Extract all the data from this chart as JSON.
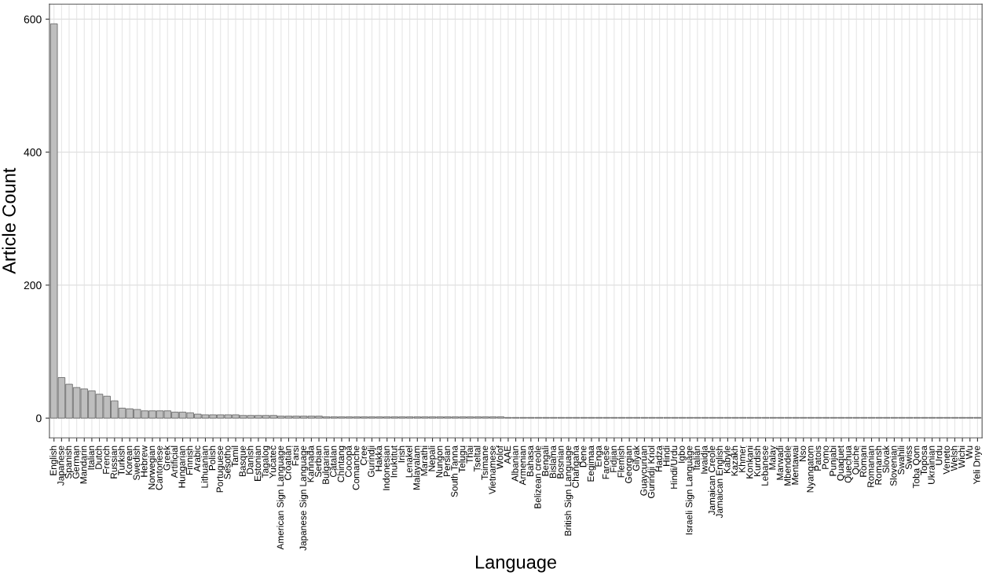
{
  "chart_data": {
    "type": "bar",
    "xlabel": "Language",
    "ylabel": "Article Count",
    "categories": [
      "English",
      "Japanese",
      "Spanish",
      "German",
      "Mandarin",
      "Italian",
      "Dutch",
      "French",
      "Russian",
      "Turkish",
      "Korean",
      "Swedish",
      "Hebrew",
      "Norwegian",
      "Cantonese",
      "Greek",
      "Artificial",
      "Hungarian",
      "Finnish",
      "Arabic",
      "Lithuanian",
      "Polish",
      "Portuguese",
      "Sesotho",
      "Tamil",
      "Basque",
      "Danish",
      "Estonian",
      "Tagalog",
      "Yucatec",
      "American Sign Language",
      "Croatian",
      "Farsi",
      "Japanese Sign Language",
      "Kannada",
      "Serbian",
      "Bulgarian",
      "Catalan",
      "Chintang",
      "Cocopa",
      "Comanche",
      "Cree",
      "Gurindji",
      "Hakka",
      "Indonesian",
      "Inuktitut",
      "Irish",
      "Lenakel",
      "Malayalam",
      "Marathi",
      "Nepali",
      "Nungon",
      "Persian",
      "South Tanna",
      "Telugu",
      "Thai",
      "Tseltal",
      "Tsimane",
      "Vietnamese",
      "Wolof",
      "AAE",
      "Albanian",
      "Armenian",
      "Bahasa",
      "Belizean creole",
      "Bengali",
      "Bislama",
      "Bosnian",
      "British Sign Language",
      "Changana",
      "Dene",
      "Eegimaa",
      "Enga",
      "Faroese",
      "Fidjian",
      "Flemish",
      "Georgian",
      "Gilyak",
      "Guaycuruan",
      "Gurindji Kriol",
      "Hadza",
      "Hindi",
      "Hindi/Urdu",
      "Igbo",
      "Israeli Sign Language",
      "Italian",
      "Iwaidja",
      "Jamaican Creole",
      "Jamaican English",
      "Kabyle",
      "Kazakh",
      "Khmer",
      "Konkani",
      "Kurdish",
      "Lebanese",
      "Malay",
      "Marwadi",
      "Mbendele",
      "Mentawai",
      "Nso",
      "Nyangatom",
      "Patois",
      "Pomo",
      "Punjabi",
      "Quaquet",
      "Quechua",
      "Quiche",
      "Romani",
      "Romanian",
      "Romansh",
      "Slovak",
      "Slovenian",
      "Swahili",
      "Swiss",
      "Toba Qom",
      "Toposa",
      "Ukrainian",
      "Urdu",
      "Veneto",
      "Welsh",
      "Wichi",
      "Wu",
      "Yeli Dnye"
    ],
    "values": [
      593,
      61,
      51,
      46,
      44,
      41,
      36,
      33,
      26,
      15,
      14,
      13,
      11,
      11,
      11,
      11,
      9,
      9,
      8,
      6,
      5,
      5,
      5,
      5,
      5,
      4,
      4,
      4,
      4,
      4,
      3,
      3,
      3,
      3,
      3,
      3,
      2,
      2,
      2,
      2,
      2,
      2,
      2,
      2,
      2,
      2,
      2,
      2,
      2,
      2,
      2,
      2,
      2,
      2,
      2,
      2,
      2,
      2,
      2,
      2,
      1,
      1,
      1,
      1,
      1,
      1,
      1,
      1,
      1,
      1,
      1,
      1,
      1,
      1,
      1,
      1,
      1,
      1,
      1,
      1,
      1,
      1,
      1,
      1,
      1,
      1,
      1,
      1,
      1,
      1,
      1,
      1,
      1,
      1,
      1,
      1,
      1,
      1,
      1,
      1,
      1,
      1,
      1,
      1,
      1,
      1,
      1,
      1,
      1,
      1,
      1,
      1,
      1,
      1,
      1,
      1,
      1,
      1,
      1,
      1,
      1,
      1,
      1
    ],
    "color": "#bebebe",
    "ylim": [
      -29.65,
      622.65
    ],
    "yticks": [
      0,
      200,
      400,
      600
    ],
    "grid": true
  }
}
